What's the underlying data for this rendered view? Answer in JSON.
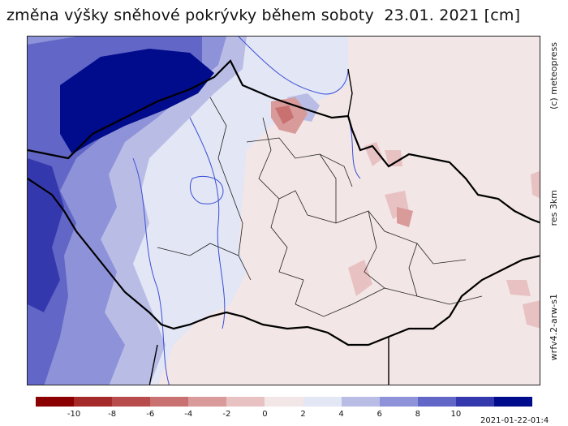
{
  "title": "změna výšky sněhové pokrývky během soboty  23.01. 2021 [cm]",
  "side_labels": {
    "copyright": "(c) meteopress",
    "resolution": "res 3km",
    "model": "wrfv4.2-arw-s1"
  },
  "timestamp": "2021-01-22-01:4",
  "colorbar": {
    "colors": [
      "#8b0000",
      "#a52a2a",
      "#b84c4c",
      "#c97070",
      "#d99a9a",
      "#e8c2c2",
      "#f3e6e6",
      "#e2e6f5",
      "#b9bde6",
      "#8e92d8",
      "#6266c6",
      "#3438ad",
      "#000c8c"
    ],
    "tick_labels": [
      "-10",
      "-8",
      "-6",
      "-4",
      "-2",
      "0",
      "2",
      "4",
      "6",
      "8",
      "10"
    ]
  },
  "map": {
    "legend_unit": "cm",
    "base_color": "#f3e6e6"
  }
}
